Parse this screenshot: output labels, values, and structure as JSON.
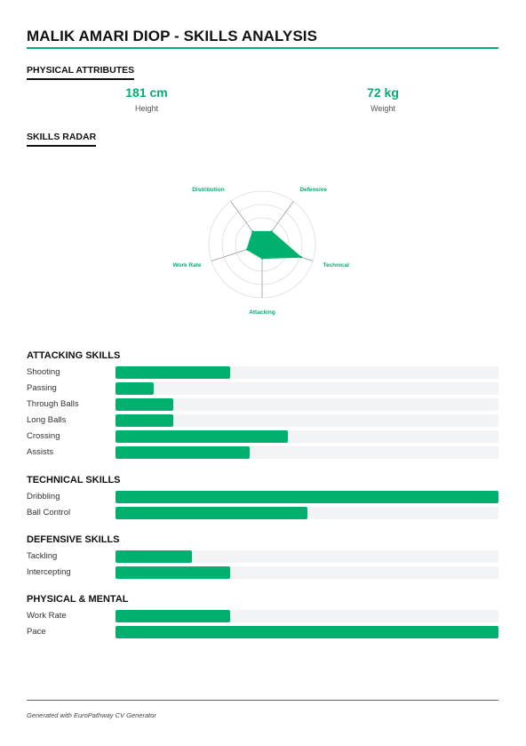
{
  "page": {
    "title": "MALIK AMARI DIOP - SKILLS ANALYSIS",
    "accent_color": "#00b06f"
  },
  "physical_attributes": {
    "heading": "PHYSICAL ATTRIBUTES",
    "items": [
      {
        "value": "181 cm",
        "label": "Height"
      },
      {
        "value": "72 kg",
        "label": "Weight"
      }
    ]
  },
  "skills_radar": {
    "heading": "SKILLS RADAR",
    "axes": [
      "Defensive",
      "Technical",
      "Attacking",
      "Work Rate",
      "Distribution"
    ],
    "levels": 4
  },
  "chart_data": {
    "type": "radar",
    "categories": [
      "Defensive",
      "Technical",
      "Attacking",
      "Work Rate",
      "Distribution"
    ],
    "values": [
      0.3,
      0.77,
      0.26,
      0.3,
      0.3
    ],
    "ylim": [
      0,
      1
    ],
    "color": "#00b06f",
    "grid": true
  },
  "skill_groups": [
    {
      "heading": "ATTACKING SKILLS",
      "skills": [
        {
          "name": "Shooting",
          "level": 0.3
        },
        {
          "name": "Passing",
          "level": 0.1
        },
        {
          "name": "Through Balls",
          "level": 0.15
        },
        {
          "name": "Long Balls",
          "level": 0.15
        },
        {
          "name": "Crossing",
          "level": 0.45
        },
        {
          "name": "Assists",
          "level": 0.35
        }
      ]
    },
    {
      "heading": "TECHNICAL SKILLS",
      "skills": [
        {
          "name": "Dribbling",
          "level": 1.0
        },
        {
          "name": "Ball Control",
          "level": 0.5
        }
      ]
    },
    {
      "heading": "DEFENSIVE SKILLS",
      "skills": [
        {
          "name": "Tackling",
          "level": 0.2
        },
        {
          "name": "Intercepting",
          "level": 0.3
        }
      ]
    },
    {
      "heading": "PHYSICAL & MENTAL",
      "skills": [
        {
          "name": "Work Rate",
          "level": 0.3
        },
        {
          "name": "Pace",
          "level": 1.0
        }
      ]
    }
  ],
  "footer": {
    "text": "Generated with EuroPathway CV Generator"
  }
}
